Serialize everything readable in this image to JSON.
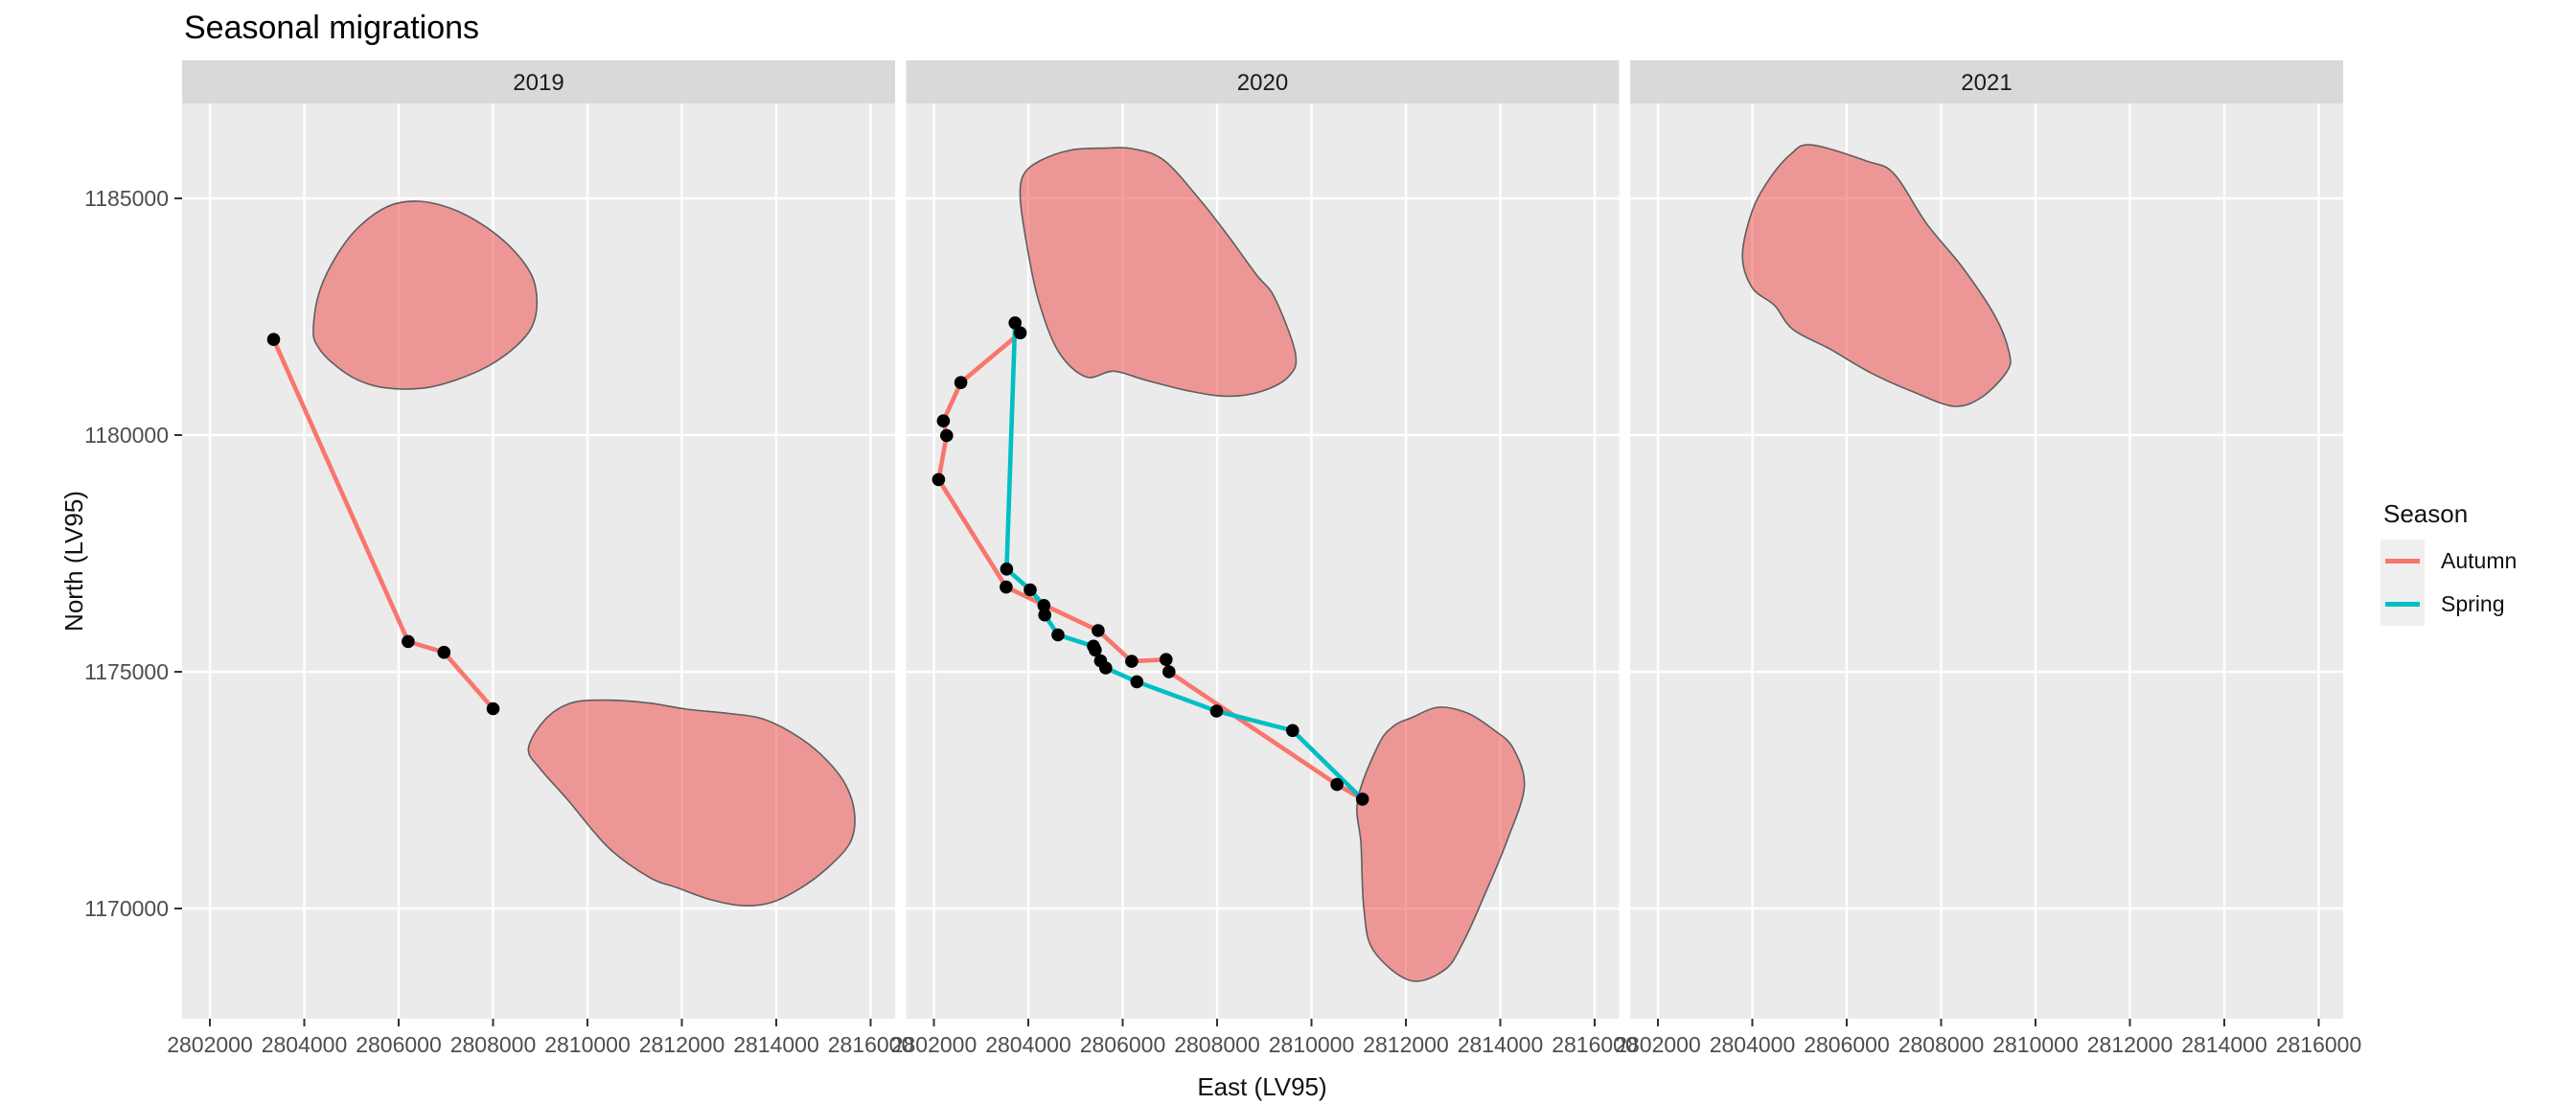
{
  "title": "Seasonal migrations",
  "axes": {
    "x_title": "East (LV95)",
    "y_title": "North (LV95)",
    "x_ticks": [
      2802000,
      2804000,
      2806000,
      2808000,
      2810000,
      2812000,
      2814000,
      2816000
    ],
    "y_ticks": [
      1185000,
      1180000,
      1175000,
      1170000
    ]
  },
  "legend": {
    "title": "Season",
    "items": [
      {
        "label": "Autumn",
        "color": "#F8766D"
      },
      {
        "label": "Spring",
        "color": "#00BFC4"
      }
    ]
  },
  "style": {
    "panel_bg": "#EBEBEB",
    "strip_bg": "#D9D9D9",
    "grid_color": "#FFFFFF",
    "habitat_fill": "rgba(240,73,73,0.52)",
    "habitat_stroke": "#5E5E5E",
    "point_color": "#000000",
    "tick_mark_color": "#333333"
  },
  "chart_data": {
    "type": "scatter",
    "title": "Seasonal migrations",
    "xlabel": "East (LV95)",
    "ylabel": "North (LV95)",
    "coordinate_system": "LV95",
    "grid": "major only, white on gray panel",
    "legend_position": "right",
    "x_range": [
      2801411,
      2816518
    ],
    "y_range": [
      1167672,
      1187004
    ],
    "facets": [
      {
        "label": "2019",
        "polygons": [
          [
            [
              2804190,
              1182190
            ],
            [
              2804300,
              1182960
            ],
            [
              2804620,
              1183680
            ],
            [
              2805100,
              1184340
            ],
            [
              2805750,
              1184820
            ],
            [
              2806390,
              1184940
            ],
            [
              2807100,
              1184790
            ],
            [
              2807800,
              1184430
            ],
            [
              2808400,
              1183940
            ],
            [
              2808820,
              1183370
            ],
            [
              2808930,
              1182820
            ],
            [
              2808830,
              1182300
            ],
            [
              2808480,
              1181870
            ],
            [
              2807900,
              1181460
            ],
            [
              2807200,
              1181160
            ],
            [
              2806500,
              1180990
            ],
            [
              2805700,
              1181000
            ],
            [
              2805100,
              1181180
            ],
            [
              2804600,
              1181520
            ],
            [
              2804300,
              1181850
            ]
          ],
          [
            [
              2808750,
              1173380
            ],
            [
              2809100,
              1173990
            ],
            [
              2809650,
              1174340
            ],
            [
              2810400,
              1174400
            ],
            [
              2811300,
              1174340
            ],
            [
              2812100,
              1174210
            ],
            [
              2813000,
              1174120
            ],
            [
              2813700,
              1174010
            ],
            [
              2814350,
              1173700
            ],
            [
              2814950,
              1173250
            ],
            [
              2815450,
              1172650
            ],
            [
              2815660,
              1172000
            ],
            [
              2815570,
              1171400
            ],
            [
              2815100,
              1170870
            ],
            [
              2814500,
              1170420
            ],
            [
              2813900,
              1170130
            ],
            [
              2813300,
              1170060
            ],
            [
              2812600,
              1170190
            ],
            [
              2811900,
              1170440
            ],
            [
              2811310,
              1170660
            ],
            [
              2810440,
              1171290
            ],
            [
              2809570,
              1172310
            ],
            [
              2809000,
              1172950
            ]
          ]
        ],
        "tracks": [
          {
            "season": "Autumn",
            "points": [
              [
                2803350,
                1182020
              ],
              [
                2806200,
                1175640
              ],
              [
                2806960,
                1175410
              ],
              [
                2808000,
                1174220
              ]
            ]
          }
        ],
        "points": [
          [
            2803350,
            1182020
          ],
          [
            2806200,
            1175640
          ],
          [
            2806960,
            1175410
          ],
          [
            2808000,
            1174220
          ]
        ]
      },
      {
        "label": "2020",
        "polygons": [
          [
            [
              2803830,
              1185000
            ],
            [
              2803900,
              1185500
            ],
            [
              2804260,
              1185800
            ],
            [
              2804900,
              1186020
            ],
            [
              2805600,
              1186060
            ],
            [
              2806200,
              1186050
            ],
            [
              2806880,
              1185800
            ],
            [
              2807660,
              1184940
            ],
            [
              2808240,
              1184200
            ],
            [
              2808830,
              1183390
            ],
            [
              2809220,
              1182900
            ],
            [
              2809660,
              1181720
            ],
            [
              2809510,
              1181230
            ],
            [
              2808930,
              1180920
            ],
            [
              2808240,
              1180820
            ],
            [
              2807460,
              1180920
            ],
            [
              2806490,
              1181160
            ],
            [
              2805810,
              1181350
            ],
            [
              2805220,
              1181230
            ],
            [
              2804630,
              1181780
            ],
            [
              2804200,
              1182900
            ],
            [
              2803950,
              1184130
            ]
          ],
          [
            [
              2810980,
              1172300
            ],
            [
              2811420,
              1173460
            ],
            [
              2811750,
              1173860
            ],
            [
              2812120,
              1174030
            ],
            [
              2812690,
              1174250
            ],
            [
              2813300,
              1174130
            ],
            [
              2813840,
              1173790
            ],
            [
              2814270,
              1173390
            ],
            [
              2814510,
              1172570
            ],
            [
              2814140,
              1171420
            ],
            [
              2813630,
              1170200
            ],
            [
              2813230,
              1169320
            ],
            [
              2812830,
              1168710
            ],
            [
              2812090,
              1168480
            ],
            [
              2811310,
              1169120
            ],
            [
              2811110,
              1170000
            ],
            [
              2811050,
              1171360
            ]
          ]
        ],
        "tracks": [
          {
            "season": "Autumn",
            "points": [
              [
                2803830,
                1182160
              ],
              [
                2802570,
                1181110
              ],
              [
                2802200,
                1180300
              ],
              [
                2802270,
                1179990
              ],
              [
                2802100,
                1179060
              ],
              [
                2803530,
                1176790
              ],
              [
                2805480,
                1175870
              ],
              [
                2806190,
                1175220
              ],
              [
                2806920,
                1175260
              ],
              [
                2806980,
                1175000
              ],
              [
                2810540,
                1172620
              ],
              [
                2811080,
                1172310
              ]
            ]
          },
          {
            "season": "Spring",
            "points": [
              [
                2811080,
                1172310
              ],
              [
                2809600,
                1173760
              ],
              [
                2807990,
                1174170
              ],
              [
                2806300,
                1174790
              ],
              [
                2805640,
                1175080
              ],
              [
                2805530,
                1175230
              ],
              [
                2805420,
                1175460
              ],
              [
                2805380,
                1175540
              ],
              [
                2804630,
                1175780
              ],
              [
                2804350,
                1176200
              ],
              [
                2804330,
                1176400
              ],
              [
                2804040,
                1176730
              ],
              [
                2803540,
                1177170
              ],
              [
                2803720,
                1182370
              ]
            ]
          }
        ],
        "points": [
          [
            2803720,
            1182370
          ],
          [
            2803830,
            1182160
          ],
          [
            2802570,
            1181110
          ],
          [
            2802200,
            1180300
          ],
          [
            2802270,
            1179990
          ],
          [
            2802100,
            1179060
          ],
          [
            2803540,
            1177170
          ],
          [
            2803530,
            1176790
          ],
          [
            2804040,
            1176730
          ],
          [
            2804330,
            1176400
          ],
          [
            2804350,
            1176200
          ],
          [
            2804630,
            1175780
          ],
          [
            2805380,
            1175540
          ],
          [
            2805420,
            1175460
          ],
          [
            2805530,
            1175230
          ],
          [
            2805640,
            1175080
          ],
          [
            2805480,
            1175870
          ],
          [
            2806190,
            1175220
          ],
          [
            2806920,
            1175260
          ],
          [
            2806980,
            1175000
          ],
          [
            2806300,
            1174790
          ],
          [
            2807990,
            1174170
          ],
          [
            2809600,
            1173760
          ],
          [
            2810540,
            1172620
          ],
          [
            2811080,
            1172310
          ]
        ]
      },
      {
        "label": "2021",
        "polygons": [
          [
            [
              2805250,
              1186130
            ],
            [
              2806420,
              1185790
            ],
            [
              2807000,
              1185520
            ],
            [
              2807690,
              1184470
            ],
            [
              2808470,
              1183520
            ],
            [
              2809150,
              1182500
            ],
            [
              2809440,
              1181750
            ],
            [
              2809400,
              1181350
            ],
            [
              2808860,
              1180800
            ],
            [
              2808270,
              1180610
            ],
            [
              2807440,
              1180900
            ],
            [
              2806520,
              1181310
            ],
            [
              2805640,
              1181820
            ],
            [
              2804860,
              1182230
            ],
            [
              2804470,
              1182740
            ],
            [
              2804000,
              1183110
            ],
            [
              2803790,
              1183790
            ],
            [
              2804000,
              1184740
            ],
            [
              2804370,
              1185420
            ],
            [
              2804810,
              1185930
            ]
          ]
        ],
        "tracks": [],
        "points": []
      }
    ]
  }
}
